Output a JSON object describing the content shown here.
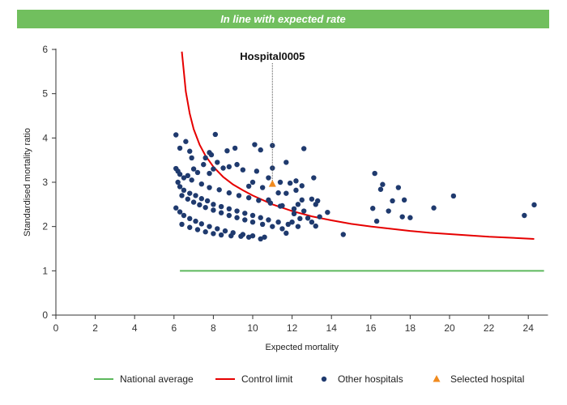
{
  "banner": {
    "label": "In line with expected rate"
  },
  "chart_data": {
    "type": "scatter",
    "title": "",
    "xlabel": "Expected mortality",
    "ylabel": "Standardised mortality ratio",
    "xlim": [
      0,
      25
    ],
    "ylim": [
      0,
      6
    ],
    "xticks": [
      0,
      2,
      4,
      6,
      8,
      10,
      12,
      14,
      16,
      18,
      20,
      22,
      24
    ],
    "yticks": [
      0,
      1,
      2,
      3,
      4,
      5,
      6
    ],
    "grid": false,
    "legend_position": "bottom",
    "annotation": {
      "label": "Hospital0005",
      "x": 11.0,
      "y": 2.96
    },
    "series": [
      {
        "name": "National average",
        "kind": "line",
        "color": "#5cb85c",
        "x": [
          6.3,
          24.8
        ],
        "y": [
          1.0,
          1.0
        ]
      },
      {
        "name": "Control limit",
        "kind": "line",
        "color": "#e60000",
        "x": [
          6.4,
          6.6,
          6.8,
          7.0,
          7.3,
          7.6,
          8.0,
          8.5,
          9.0,
          9.5,
          10.0,
          11.0,
          12.0,
          13.0,
          14.0,
          15.0,
          16.0,
          17.0,
          18.0,
          19.0,
          20.0,
          21.0,
          22.0,
          23.0,
          24.3
        ],
        "y": [
          5.95,
          5.05,
          4.55,
          4.2,
          3.85,
          3.6,
          3.35,
          3.12,
          2.95,
          2.82,
          2.7,
          2.5,
          2.35,
          2.23,
          2.14,
          2.06,
          2.0,
          1.95,
          1.9,
          1.86,
          1.83,
          1.8,
          1.77,
          1.75,
          1.72
        ]
      },
      {
        "name": "Other hospitals",
        "kind": "points",
        "color": "#1f3a6e",
        "points": [
          [
            6.1,
            4.07
          ],
          [
            6.6,
            3.92
          ],
          [
            6.3,
            3.77
          ],
          [
            6.8,
            3.7
          ],
          [
            6.9,
            3.55
          ],
          [
            7.6,
            3.55
          ],
          [
            7.8,
            3.67
          ],
          [
            7.9,
            3.62
          ],
          [
            8.1,
            4.08
          ],
          [
            8.7,
            3.71
          ],
          [
            9.1,
            3.77
          ],
          [
            6.1,
            3.31
          ],
          [
            6.2,
            3.25
          ],
          [
            6.3,
            3.18
          ],
          [
            6.5,
            3.1
          ],
          [
            6.7,
            3.15
          ],
          [
            7.0,
            3.3
          ],
          [
            7.2,
            3.22
          ],
          [
            7.5,
            3.4
          ],
          [
            7.8,
            3.2
          ],
          [
            8.0,
            3.3
          ],
          [
            8.2,
            3.45
          ],
          [
            8.5,
            3.32
          ],
          [
            8.8,
            3.35
          ],
          [
            9.2,
            3.4
          ],
          [
            9.5,
            3.28
          ],
          [
            10.2,
            3.25
          ],
          [
            10.8,
            3.1
          ],
          [
            11.0,
            3.32
          ],
          [
            10.1,
            3.85
          ],
          [
            10.4,
            3.73
          ],
          [
            11.0,
            3.83
          ],
          [
            12.6,
            3.76
          ],
          [
            11.4,
            3.0
          ],
          [
            11.9,
            2.98
          ],
          [
            12.2,
            3.03
          ],
          [
            13.1,
            3.1
          ],
          [
            11.7,
            3.45
          ],
          [
            6.2,
            3.0
          ],
          [
            6.3,
            2.9
          ],
          [
            6.5,
            2.82
          ],
          [
            6.8,
            2.75
          ],
          [
            7.1,
            2.7
          ],
          [
            7.4,
            2.63
          ],
          [
            7.7,
            2.58
          ],
          [
            8.0,
            2.5
          ],
          [
            8.4,
            2.45
          ],
          [
            8.8,
            2.4
          ],
          [
            9.2,
            2.35
          ],
          [
            9.6,
            2.3
          ],
          [
            10.0,
            2.25
          ],
          [
            10.4,
            2.2
          ],
          [
            10.8,
            2.15
          ],
          [
            11.3,
            2.1
          ],
          [
            11.8,
            2.05
          ],
          [
            12.3,
            2.0
          ],
          [
            6.4,
            2.7
          ],
          [
            6.7,
            2.62
          ],
          [
            7.0,
            2.55
          ],
          [
            7.3,
            2.49
          ],
          [
            7.6,
            2.43
          ],
          [
            8.0,
            2.37
          ],
          [
            8.4,
            2.31
          ],
          [
            8.8,
            2.25
          ],
          [
            9.2,
            2.2
          ],
          [
            9.6,
            2.15
          ],
          [
            10.0,
            2.1
          ],
          [
            10.5,
            2.05
          ],
          [
            11.0,
            2.0
          ],
          [
            11.5,
            1.95
          ],
          [
            6.1,
            2.42
          ],
          [
            6.3,
            2.33
          ],
          [
            6.5,
            2.25
          ],
          [
            6.8,
            2.18
          ],
          [
            7.1,
            2.12
          ],
          [
            7.4,
            2.06
          ],
          [
            7.8,
            2.0
          ],
          [
            8.2,
            1.95
          ],
          [
            8.6,
            1.9
          ],
          [
            9.0,
            1.86
          ],
          [
            9.5,
            1.82
          ],
          [
            10.0,
            1.79
          ],
          [
            10.6,
            1.76
          ],
          [
            6.4,
            2.05
          ],
          [
            6.8,
            1.98
          ],
          [
            7.2,
            1.93
          ],
          [
            7.6,
            1.88
          ],
          [
            8.0,
            1.84
          ],
          [
            8.4,
            1.81
          ],
          [
            8.9,
            1.79
          ],
          [
            9.4,
            1.78
          ],
          [
            9.8,
            1.76
          ],
          [
            10.4,
            1.72
          ],
          [
            6.9,
            3.05
          ],
          [
            7.4,
            2.96
          ],
          [
            7.8,
            2.88
          ],
          [
            8.3,
            2.83
          ],
          [
            8.8,
            2.76
          ],
          [
            9.3,
            2.7
          ],
          [
            9.8,
            2.65
          ],
          [
            10.3,
            2.59
          ],
          [
            10.9,
            2.53
          ],
          [
            11.5,
            2.47
          ],
          [
            12.1,
            2.4
          ],
          [
            12.5,
            2.6
          ],
          [
            12.3,
            2.5
          ],
          [
            12.6,
            2.35
          ],
          [
            13.0,
            2.62
          ],
          [
            13.2,
            2.5
          ],
          [
            13.3,
            2.58
          ],
          [
            12.8,
            2.19
          ],
          [
            13.0,
            2.1
          ],
          [
            13.4,
            2.22
          ],
          [
            13.8,
            2.32
          ],
          [
            13.2,
            2.01
          ],
          [
            12.1,
            2.29
          ],
          [
            12.4,
            2.18
          ],
          [
            11.7,
            1.85
          ],
          [
            12.0,
            2.1
          ],
          [
            12.5,
            2.92
          ],
          [
            11.3,
            2.76
          ],
          [
            11.7,
            2.75
          ],
          [
            12.2,
            2.82
          ],
          [
            11.4,
            2.46
          ],
          [
            10.8,
            2.6
          ],
          [
            10.5,
            2.88
          ],
          [
            10.0,
            3.0
          ],
          [
            9.8,
            2.91
          ],
          [
            14.6,
            1.82
          ],
          [
            16.1,
            2.41
          ],
          [
            16.2,
            3.2
          ],
          [
            16.3,
            2.12
          ],
          [
            16.5,
            2.84
          ],
          [
            16.6,
            2.95
          ],
          [
            16.9,
            2.35
          ],
          [
            17.1,
            2.58
          ],
          [
            17.4,
            2.88
          ],
          [
            17.6,
            2.22
          ],
          [
            17.7,
            2.6
          ],
          [
            18.0,
            2.2
          ],
          [
            19.2,
            2.42
          ],
          [
            20.2,
            2.69
          ],
          [
            23.8,
            2.25
          ],
          [
            24.3,
            2.49
          ]
        ]
      },
      {
        "name": "Selected hospital",
        "kind": "marker",
        "color": "#f08a1e",
        "points": [
          [
            11.0,
            2.96
          ]
        ]
      }
    ]
  }
}
